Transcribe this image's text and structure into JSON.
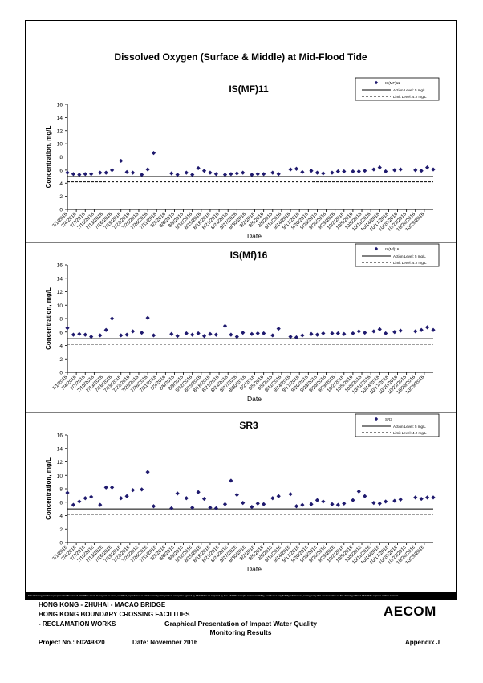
{
  "main_title": "Dissolved Oxygen (Surface & Middle) at Mid-Flood Tide",
  "footer": {
    "disclaimer": "This Drawing has been prepared for the use of AECOM's client. It may not be used, modified, reproduced or relied upon by third parties, except as agreed by AECOM or as required by law. AECOM accepts no responsibility, and denies any liability whatsoever, to any party that uses or relies on this drawing without AECOM's express written consent.",
    "project_line1": "HONG KONG - ZHUHAI - MACAO BRIDGE",
    "project_line2": "HONG KONG BOUNDARY CROSSING FACILITIES",
    "project_line3": "- RECLAMATION WORKS",
    "logo": "AECOM",
    "presentation_title_1": "Graphical Presentation of Impact Water Quality",
    "presentation_title_2": "Monitoring Results",
    "project_no": "Project No.: 60249820",
    "date": "Date: November 2016",
    "appendix": "Appendix J"
  },
  "colors": {
    "marker": "#1f1a6e",
    "line": "#000000"
  },
  "chart_data": [
    {
      "type": "scatter",
      "title": "IS(MF)11",
      "xlabel": "Date",
      "ylabel": "Concentration, mg/L",
      "ylim": [
        0,
        16
      ],
      "yticks": [
        0,
        2,
        4,
        6,
        8,
        10,
        12,
        14,
        16
      ],
      "xticks": [
        "7/1/2016",
        "7/4/2016",
        "7/7/2016",
        "7/10/2016",
        "7/13/2016",
        "7/16/2016",
        "7/19/2016",
        "7/22/2016",
        "7/25/2016",
        "7/28/2016",
        "7/31/2016",
        "8/3/2016",
        "8/6/2016",
        "8/9/2016",
        "8/12/2016",
        "8/15/2016",
        "8/18/2016",
        "8/21/2016",
        "8/24/2016",
        "8/27/2016",
        "8/30/2016",
        "9/2/2016",
        "9/5/2016",
        "9/8/2016",
        "9/11/2016",
        "9/14/2016",
        "9/17/2016",
        "9/20/2016",
        "9/23/2016",
        "9/26/2016",
        "9/29/2016",
        "10/2/2016",
        "10/5/2016",
        "10/8/2016",
        "10/11/2016",
        "10/14/2016",
        "10/17/2016",
        "10/20/2016",
        "10/23/2016",
        "10/26/2016",
        "10/29/2016"
      ],
      "series": [
        {
          "name": "IS(MF)11",
          "x": [
            "7/1/2016",
            "7/3/2016",
            "7/5/2016",
            "7/7/2016",
            "7/9/2016",
            "7/12/2016",
            "7/14/2016",
            "7/16/2016",
            "7/19/2016",
            "7/21/2016",
            "7/23/2016",
            "7/26/2016",
            "7/28/2016",
            "7/30/2016",
            "8/5/2016",
            "8/7/2016",
            "8/10/2016",
            "8/12/2016",
            "8/14/2016",
            "8/16/2016",
            "8/18/2016",
            "8/20/2016",
            "8/23/2016",
            "8/25/2016",
            "8/27/2016",
            "8/29/2016",
            "9/1/2016",
            "9/3/2016",
            "9/5/2016",
            "9/8/2016",
            "9/10/2016",
            "9/14/2016",
            "9/16/2016",
            "9/18/2016",
            "9/21/2016",
            "9/23/2016",
            "9/25/2016",
            "9/28/2016",
            "9/30/2016",
            "10/2/2016",
            "10/5/2016",
            "10/7/2016",
            "10/9/2016",
            "10/12/2016",
            "10/14/2016",
            "10/16/2016",
            "10/19/2016",
            "10/21/2016",
            "10/26/2016",
            "10/28/2016",
            "10/30/2016",
            "11/1/2016"
          ],
          "y": [
            5.6,
            5.4,
            5.3,
            5.4,
            5.4,
            5.6,
            5.6,
            6.0,
            7.4,
            5.7,
            5.6,
            5.3,
            6.1,
            8.6,
            5.5,
            5.3,
            5.6,
            5.3,
            6.3,
            5.9,
            5.6,
            5.4,
            5.3,
            5.4,
            5.5,
            5.6,
            5.3,
            5.4,
            5.4,
            5.6,
            5.4,
            6.1,
            6.2,
            5.7,
            5.9,
            5.6,
            5.5,
            5.6,
            5.8,
            5.8,
            5.8,
            5.8,
            5.9,
            6.1,
            6.4,
            5.8,
            6.0,
            6.1,
            6.0,
            5.9,
            6.4,
            6.1
          ]
        },
        {
          "name": "Action Level: 5 mg/L",
          "type": "hline",
          "y": 5
        },
        {
          "name": "Limit Level: 4.2 mg/L",
          "type": "hline",
          "y": 4.2
        }
      ],
      "grid": false,
      "legend": "top-right"
    },
    {
      "type": "scatter",
      "title": "IS(Mf)16",
      "xlabel": "Date",
      "ylabel": "Concentration, mg/L",
      "ylim": [
        0,
        16
      ],
      "yticks": [
        0,
        2,
        4,
        6,
        8,
        10,
        12,
        14,
        16
      ],
      "xticks": [
        "7/1/2016",
        "7/4/2016",
        "7/7/2016",
        "7/10/2016",
        "7/13/2016",
        "7/16/2016",
        "7/19/2016",
        "7/22/2016",
        "7/25/2016",
        "7/28/2016",
        "7/31/2016",
        "8/3/2016",
        "8/6/2016",
        "8/9/2016",
        "8/12/2016",
        "8/15/2016",
        "8/18/2016",
        "8/21/2016",
        "8/24/2016",
        "8/27/2016",
        "8/30/2016",
        "9/2/2016",
        "9/5/2016",
        "9/8/2016",
        "9/11/2016",
        "9/14/2016",
        "9/17/2016",
        "9/20/2016",
        "9/23/2016",
        "9/26/2016",
        "9/29/2016",
        "10/2/2016",
        "10/5/2016",
        "10/8/2016",
        "10/11/2016",
        "10/14/2016",
        "10/17/2016",
        "10/20/2016",
        "10/23/2016",
        "10/26/2016",
        "10/29/2016"
      ],
      "series": [
        {
          "name": "IS(Mf)16",
          "x": [
            "7/1/2016",
            "7/3/2016",
            "7/5/2016",
            "7/7/2016",
            "7/9/2016",
            "7/12/2016",
            "7/14/2016",
            "7/16/2016",
            "7/19/2016",
            "7/21/2016",
            "7/23/2016",
            "7/26/2016",
            "7/28/2016",
            "7/30/2016",
            "8/5/2016",
            "8/7/2016",
            "8/10/2016",
            "8/12/2016",
            "8/14/2016",
            "8/16/2016",
            "8/18/2016",
            "8/20/2016",
            "8/23/2016",
            "8/25/2016",
            "8/27/2016",
            "8/29/2016",
            "9/1/2016",
            "9/3/2016",
            "9/5/2016",
            "9/8/2016",
            "9/10/2016",
            "9/14/2016",
            "9/16/2016",
            "9/18/2016",
            "9/21/2016",
            "9/23/2016",
            "9/25/2016",
            "9/28/2016",
            "9/30/2016",
            "10/2/2016",
            "10/5/2016",
            "10/7/2016",
            "10/9/2016",
            "10/12/2016",
            "10/14/2016",
            "10/16/2016",
            "10/19/2016",
            "10/21/2016",
            "10/26/2016",
            "10/28/2016",
            "10/30/2016",
            "11/1/2016"
          ],
          "y": [
            6.6,
            5.6,
            5.7,
            5.6,
            5.3,
            5.5,
            6.3,
            8.0,
            5.5,
            5.6,
            6.1,
            5.9,
            8.1,
            5.5,
            5.7,
            5.4,
            5.8,
            5.6,
            5.8,
            5.4,
            5.7,
            5.6,
            6.9,
            5.6,
            5.3,
            5.9,
            5.7,
            5.8,
            5.8,
            5.5,
            6.5,
            5.3,
            5.2,
            5.5,
            5.7,
            5.6,
            5.8,
            5.8,
            5.8,
            5.7,
            5.8,
            6.1,
            5.9,
            6.1,
            6.4,
            5.8,
            6.0,
            6.2,
            6.1,
            6.3,
            6.7,
            6.3
          ]
        },
        {
          "name": "Action Level: 5 mg/L",
          "type": "hline",
          "y": 5
        },
        {
          "name": "Limit Level: 4.2 mg/L",
          "type": "hline",
          "y": 4.2
        }
      ],
      "grid": false,
      "legend": "top-right"
    },
    {
      "type": "scatter",
      "title": "SR3",
      "xlabel": "Date",
      "ylabel": "Concentration, mg/L",
      "ylim": [
        0,
        16
      ],
      "yticks": [
        0,
        2,
        4,
        6,
        8,
        10,
        12,
        14,
        16
      ],
      "xticks": [
        "7/1/2016",
        "7/4/2016",
        "7/7/2016",
        "7/10/2016",
        "7/13/2016",
        "7/16/2016",
        "7/19/2016",
        "7/22/2016",
        "7/25/2016",
        "7/28/2016",
        "7/31/2016",
        "8/3/2016",
        "8/6/2016",
        "8/9/2016",
        "8/12/2016",
        "8/15/2016",
        "8/18/2016",
        "8/21/2016",
        "8/24/2016",
        "8/27/2016",
        "8/30/2016",
        "9/2/2016",
        "9/5/2016",
        "9/8/2016",
        "9/11/2016",
        "9/14/2016",
        "9/17/2016",
        "9/20/2016",
        "9/23/2016",
        "9/26/2016",
        "9/29/2016",
        "10/2/2016",
        "10/5/2016",
        "10/8/2016",
        "10/11/2016",
        "10/14/2016",
        "10/17/2016",
        "10/20/2016",
        "10/23/2016",
        "10/26/2016",
        "10/29/2016"
      ],
      "series": [
        {
          "name": "SR3",
          "x": [
            "7/1/2016",
            "7/3/2016",
            "7/5/2016",
            "7/7/2016",
            "7/9/2016",
            "7/12/2016",
            "7/14/2016",
            "7/16/2016",
            "7/19/2016",
            "7/21/2016",
            "7/23/2016",
            "7/26/2016",
            "7/28/2016",
            "7/30/2016",
            "8/5/2016",
            "8/7/2016",
            "8/10/2016",
            "8/12/2016",
            "8/14/2016",
            "8/16/2016",
            "8/18/2016",
            "8/20/2016",
            "8/23/2016",
            "8/25/2016",
            "8/27/2016",
            "8/29/2016",
            "9/1/2016",
            "9/3/2016",
            "9/5/2016",
            "9/8/2016",
            "9/10/2016",
            "9/14/2016",
            "9/16/2016",
            "9/18/2016",
            "9/21/2016",
            "9/23/2016",
            "9/25/2016",
            "9/28/2016",
            "9/30/2016",
            "10/2/2016",
            "10/5/2016",
            "10/7/2016",
            "10/9/2016",
            "10/12/2016",
            "10/14/2016",
            "10/16/2016",
            "10/19/2016",
            "10/21/2016",
            "10/26/2016",
            "10/28/2016",
            "10/30/2016",
            "11/1/2016"
          ],
          "y": [
            7.4,
            5.6,
            6.1,
            6.6,
            6.8,
            5.6,
            8.2,
            8.2,
            6.6,
            6.9,
            7.8,
            7.9,
            10.5,
            5.4,
            5.1,
            7.3,
            6.6,
            5.2,
            7.5,
            6.5,
            5.2,
            5.1,
            5.7,
            9.2,
            7.1,
            5.9,
            5.3,
            5.8,
            5.7,
            6.6,
            6.9,
            7.2,
            5.4,
            5.6,
            5.7,
            6.3,
            6.1,
            5.7,
            5.6,
            5.8,
            6.3,
            7.6,
            6.9,
            5.9,
            5.8,
            6.1,
            6.2,
            6.4,
            6.7,
            6.5,
            6.7,
            6.7
          ]
        },
        {
          "name": "Action Level: 5 mg/L",
          "type": "hline",
          "y": 5
        },
        {
          "name": "Limit Level: 4.2 mg/L",
          "type": "hline",
          "y": 4.2
        }
      ],
      "grid": false,
      "legend": "top-right"
    }
  ]
}
